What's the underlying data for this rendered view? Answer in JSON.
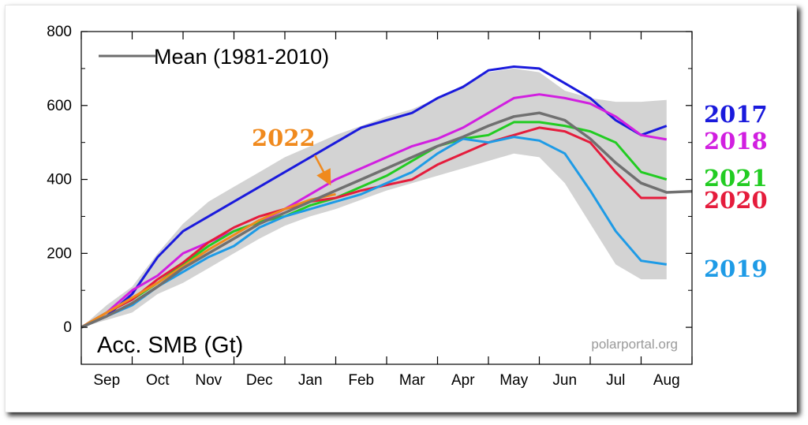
{
  "chart_data": {
    "type": "line",
    "ylabel": "Acc. SMB (Gt)",
    "credit": "polarportal.org",
    "ylim": [
      -100,
      800
    ],
    "yticks": [
      0,
      200,
      400,
      600,
      800
    ],
    "months": [
      "Sep",
      "Oct",
      "Nov",
      "Dec",
      "Jan",
      "Feb",
      "Mar",
      "Apr",
      "May",
      "Jun",
      "Jul",
      "Aug"
    ],
    "x_unit": "month index from 1 Sep",
    "grid": false,
    "mean_legend": "Mean (1981-2010)",
    "callout": {
      "label": "2022",
      "color": "#f08a1e"
    },
    "band": {
      "color": "#d3d3d3",
      "upper": [
        [
          0,
          0
        ],
        [
          0.5,
          60
        ],
        [
          1,
          110
        ],
        [
          1.5,
          200
        ],
        [
          2,
          280
        ],
        [
          2.5,
          340
        ],
        [
          3,
          380
        ],
        [
          3.5,
          420
        ],
        [
          4,
          460
        ],
        [
          4.5,
          490
        ],
        [
          5,
          520
        ],
        [
          5.5,
          545
        ],
        [
          6,
          570
        ],
        [
          6.5,
          590
        ],
        [
          7,
          620
        ],
        [
          7.5,
          655
        ],
        [
          8,
          690
        ],
        [
          8.5,
          700
        ],
        [
          9,
          690
        ],
        [
          9.5,
          640
        ],
        [
          10,
          620
        ],
        [
          10.5,
          610
        ],
        [
          11,
          610
        ],
        [
          11.5,
          615
        ]
      ],
      "lower": [
        [
          0,
          0
        ],
        [
          0.5,
          20
        ],
        [
          1,
          40
        ],
        [
          1.5,
          90
        ],
        [
          2,
          120
        ],
        [
          2.5,
          160
        ],
        [
          3,
          200
        ],
        [
          3.5,
          240
        ],
        [
          4,
          275
        ],
        [
          4.5,
          300
        ],
        [
          5,
          320
        ],
        [
          5.5,
          345
        ],
        [
          6,
          370
        ],
        [
          6.5,
          390
        ],
        [
          7,
          410
        ],
        [
          7.5,
          430
        ],
        [
          8,
          450
        ],
        [
          8.5,
          470
        ],
        [
          9,
          460
        ],
        [
          9.5,
          390
        ],
        [
          10,
          280
        ],
        [
          10.5,
          170
        ],
        [
          11,
          130
        ],
        [
          11.5,
          130
        ]
      ]
    },
    "series": [
      {
        "name": "2017",
        "color": "#1a1adc",
        "values": [
          [
            0,
            0
          ],
          [
            0.5,
            30
          ],
          [
            1,
            90
          ],
          [
            1.5,
            190
          ],
          [
            2,
            260
          ],
          [
            2.5,
            300
          ],
          [
            3,
            340
          ],
          [
            3.5,
            380
          ],
          [
            4,
            420
          ],
          [
            4.5,
            460
          ],
          [
            5,
            500
          ],
          [
            5.5,
            540
          ],
          [
            6,
            560
          ],
          [
            6.5,
            580
          ],
          [
            7,
            620
          ],
          [
            7.5,
            650
          ],
          [
            8,
            695
          ],
          [
            8.5,
            705
          ],
          [
            9,
            700
          ],
          [
            9.5,
            660
          ],
          [
            10,
            620
          ],
          [
            10.5,
            560
          ],
          [
            11,
            520
          ],
          [
            11.5,
            545
          ]
        ]
      },
      {
        "name": "2018",
        "color": "#d11fe0",
        "values": [
          [
            0,
            0
          ],
          [
            0.5,
            40
          ],
          [
            1,
            100
          ],
          [
            1.5,
            140
          ],
          [
            2,
            200
          ],
          [
            2.5,
            230
          ],
          [
            3,
            260
          ],
          [
            3.5,
            285
          ],
          [
            4,
            320
          ],
          [
            4.5,
            360
          ],
          [
            5,
            400
          ],
          [
            5.5,
            430
          ],
          [
            6,
            460
          ],
          [
            6.5,
            490
          ],
          [
            7,
            510
          ],
          [
            7.5,
            540
          ],
          [
            8,
            580
          ],
          [
            8.5,
            620
          ],
          [
            9,
            630
          ],
          [
            9.5,
            620
          ],
          [
            10,
            605
          ],
          [
            10.5,
            570
          ],
          [
            11,
            520
          ],
          [
            11.5,
            508
          ]
        ]
      },
      {
        "name": "2021",
        "color": "#22cc22",
        "values": [
          [
            0,
            0
          ],
          [
            0.5,
            40
          ],
          [
            1,
            75
          ],
          [
            1.5,
            120
          ],
          [
            2,
            170
          ],
          [
            2.5,
            220
          ],
          [
            3,
            260
          ],
          [
            3.5,
            285
          ],
          [
            4,
            300
          ],
          [
            4.5,
            330
          ],
          [
            5,
            350
          ],
          [
            5.5,
            380
          ],
          [
            6,
            410
          ],
          [
            6.5,
            450
          ],
          [
            7,
            490
          ],
          [
            7.5,
            510
          ],
          [
            8,
            520
          ],
          [
            8.5,
            555
          ],
          [
            9,
            555
          ],
          [
            9.5,
            545
          ],
          [
            10,
            530
          ],
          [
            10.5,
            500
          ],
          [
            11,
            420
          ],
          [
            11.5,
            400
          ]
        ]
      },
      {
        "name": "2020",
        "color": "#e51c3c",
        "values": [
          [
            0,
            0
          ],
          [
            0.5,
            40
          ],
          [
            1,
            75
          ],
          [
            1.5,
            130
          ],
          [
            2,
            175
          ],
          [
            2.5,
            230
          ],
          [
            3,
            270
          ],
          [
            3.5,
            300
          ],
          [
            4,
            320
          ],
          [
            4.5,
            340
          ],
          [
            5,
            350
          ],
          [
            5.5,
            370
          ],
          [
            6,
            385
          ],
          [
            6.5,
            400
          ],
          [
            7,
            440
          ],
          [
            7.5,
            470
          ],
          [
            8,
            500
          ],
          [
            8.5,
            520
          ],
          [
            9,
            540
          ],
          [
            9.5,
            530
          ],
          [
            10,
            500
          ],
          [
            10.5,
            420
          ],
          [
            11,
            350
          ],
          [
            11.5,
            350
          ]
        ]
      },
      {
        "name": "2019",
        "color": "#1e9be6",
        "values": [
          [
            0,
            0
          ],
          [
            0.5,
            30
          ],
          [
            1,
            60
          ],
          [
            1.5,
            110
          ],
          [
            2,
            150
          ],
          [
            2.5,
            190
          ],
          [
            3,
            220
          ],
          [
            3.5,
            270
          ],
          [
            4,
            300
          ],
          [
            4.5,
            320
          ],
          [
            5,
            340
          ],
          [
            5.5,
            360
          ],
          [
            6,
            390
          ],
          [
            6.5,
            420
          ],
          [
            7,
            470
          ],
          [
            7.5,
            510
          ],
          [
            8,
            500
          ],
          [
            8.5,
            515
          ],
          [
            9,
            505
          ],
          [
            9.5,
            470
          ],
          [
            10,
            370
          ],
          [
            10.5,
            260
          ],
          [
            11,
            180
          ],
          [
            11.5,
            170
          ]
        ]
      },
      {
        "name": "2022",
        "color": "#f08a1e",
        "values": [
          [
            0,
            0
          ],
          [
            0.5,
            40
          ],
          [
            1,
            80
          ],
          [
            1.5,
            120
          ],
          [
            2,
            165
          ],
          [
            2.5,
            210
          ],
          [
            3,
            250
          ],
          [
            3.5,
            290
          ],
          [
            4,
            320
          ],
          [
            4.5,
            345
          ],
          [
            5,
            360
          ]
        ]
      },
      {
        "name": "Mean (1981-2010)",
        "color": "#707070",
        "values": [
          [
            0,
            0
          ],
          [
            0.5,
            30
          ],
          [
            1,
            65
          ],
          [
            1.5,
            110
          ],
          [
            2,
            160
          ],
          [
            2.5,
            200
          ],
          [
            3,
            240
          ],
          [
            3.5,
            280
          ],
          [
            4,
            310
          ],
          [
            4.5,
            340
          ],
          [
            5,
            370
          ],
          [
            5.5,
            400
          ],
          [
            6,
            430
          ],
          [
            6.5,
            460
          ],
          [
            7,
            490
          ],
          [
            7.5,
            515
          ],
          [
            8,
            545
          ],
          [
            8.5,
            570
          ],
          [
            9,
            580
          ],
          [
            9.5,
            560
          ],
          [
            10,
            510
          ],
          [
            10.5,
            445
          ],
          [
            11,
            390
          ],
          [
            11.5,
            365
          ],
          [
            12,
            368
          ]
        ]
      }
    ]
  }
}
